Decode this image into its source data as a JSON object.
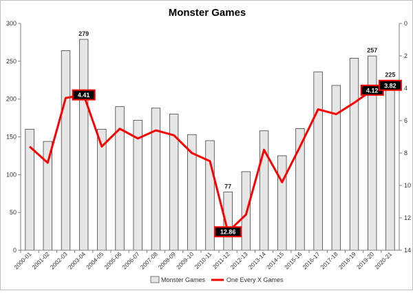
{
  "chart_data": {
    "type": "bar+line",
    "title": "Monster Games",
    "categories": [
      "2000-01",
      "2001-02",
      "2002-03",
      "2003-04",
      "2004-05",
      "2005-06",
      "2006-07",
      "2007-08",
      "2008-09",
      "2009-10",
      "2010-11",
      "2011-12",
      "2012-13",
      "2013-14",
      "2014-15",
      "2015-16",
      "2016-17",
      "2017-18",
      "2018-19",
      "2019-20",
      "2020-21"
    ],
    "series": [
      {
        "name": "Monster Games",
        "kind": "bar",
        "axis": "left",
        "color": "#e6e6e6",
        "values": [
          160,
          144,
          264,
          279,
          160,
          190,
          172,
          188,
          180,
          153,
          145,
          77,
          104,
          158,
          125,
          161,
          236,
          218,
          254,
          257,
          225
        ]
      },
      {
        "name": "One Every X Games",
        "kind": "line",
        "axis": "right",
        "color": "#ff0000",
        "values": [
          7.6,
          8.6,
          4.6,
          4.41,
          7.6,
          6.5,
          7.1,
          6.6,
          6.9,
          8.0,
          8.5,
          12.86,
          11.8,
          7.8,
          9.8,
          7.6,
          5.3,
          5.6,
          4.9,
          4.12,
          3.82
        ]
      }
    ],
    "bar_labels": [
      {
        "index": 3,
        "text": "279"
      },
      {
        "index": 11,
        "text": "77"
      },
      {
        "index": 19,
        "text": "257"
      },
      {
        "index": 20,
        "text": "225"
      }
    ],
    "line_labels": [
      {
        "index": 3,
        "text": "4.41"
      },
      {
        "index": 11,
        "text": "12.86"
      },
      {
        "index": 19,
        "text": "4.12"
      },
      {
        "index": 20,
        "text": "3.82"
      }
    ],
    "y_left": {
      "min": 0,
      "max": 300,
      "ticks": [
        0,
        50,
        100,
        150,
        200,
        250,
        300
      ]
    },
    "y_right": {
      "min": 0,
      "max": 14,
      "ticks": [
        0,
        2,
        4,
        6,
        8,
        10,
        12,
        14
      ],
      "reversed": true
    },
    "legend_position": "bottom",
    "grid": false
  }
}
